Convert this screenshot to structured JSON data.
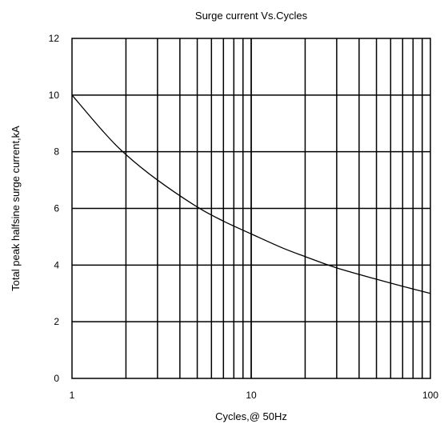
{
  "chart_data": {
    "type": "line",
    "title": "Surge current Vs.Cycles",
    "xlabel": "Cycles,@ 50Hz",
    "ylabel": "Total peak halfsine surge current,kA",
    "x_scale": "log",
    "xlim": [
      1,
      100
    ],
    "ylim": [
      0,
      12
    ],
    "x_ticks": [
      1,
      10,
      100
    ],
    "x_tick_labels": [
      "1",
      "10",
      "100"
    ],
    "y_ticks": [
      0,
      2,
      4,
      6,
      8,
      10,
      12
    ],
    "y_tick_labels": [
      "0",
      "2",
      "4",
      "6",
      "8",
      "10",
      "12"
    ],
    "grid": true,
    "line_color": "#000000",
    "grid_color": "#000000",
    "series": [
      {
        "x": [
          1,
          1.5,
          2,
          3,
          5,
          7,
          10,
          15,
          20,
          30,
          50,
          70,
          100
        ],
        "y": [
          10.0,
          8.7,
          7.9,
          7.0,
          6.05,
          5.55,
          5.1,
          4.6,
          4.3,
          3.9,
          3.5,
          3.25,
          3.0
        ]
      }
    ]
  }
}
